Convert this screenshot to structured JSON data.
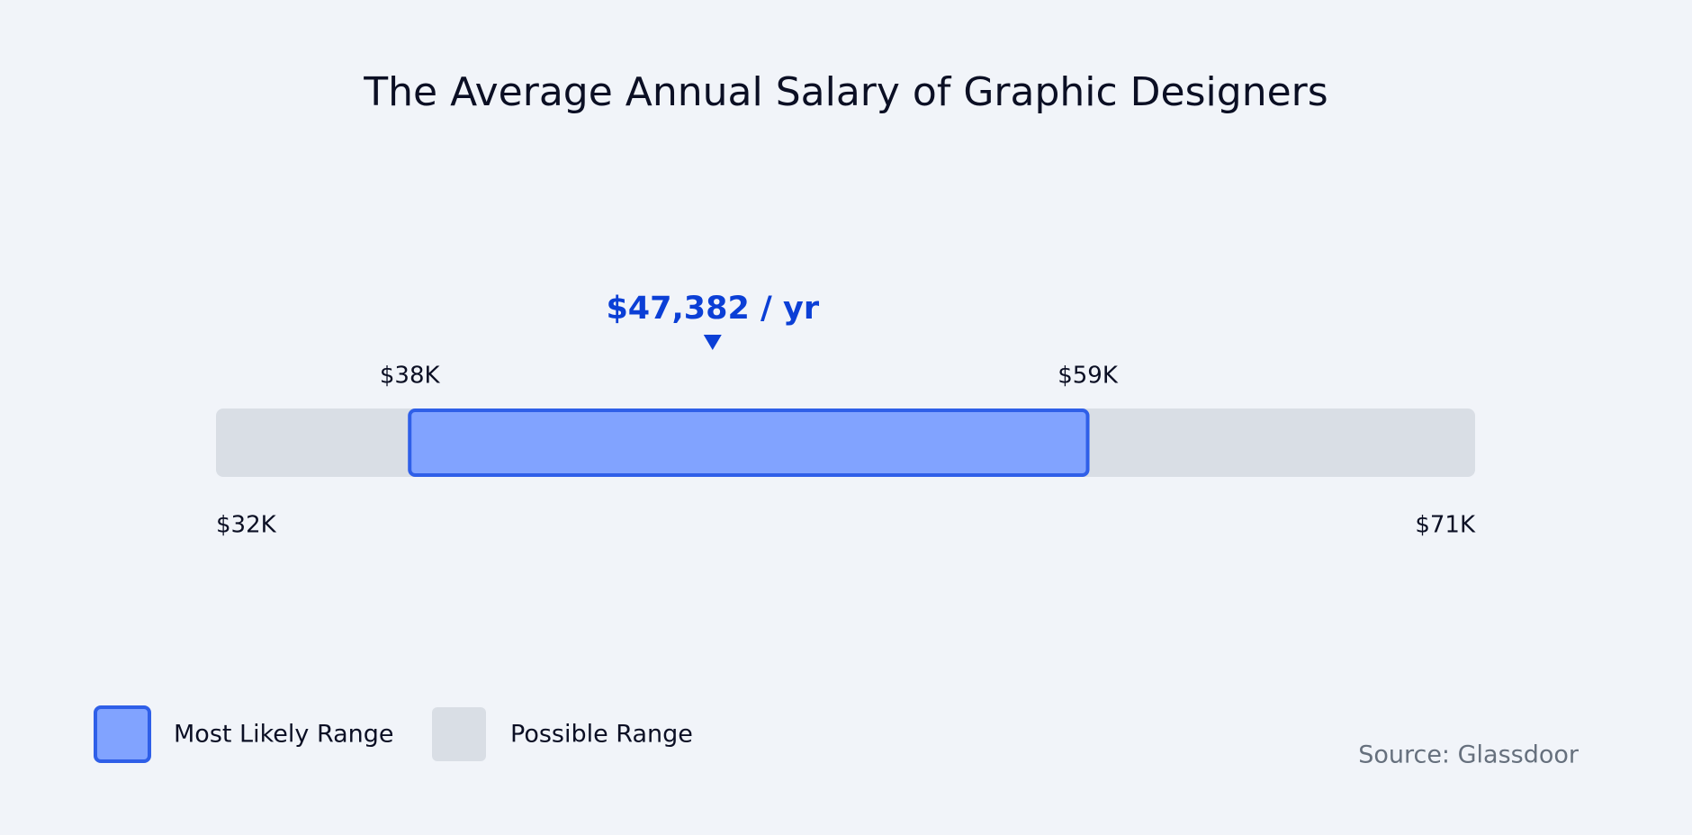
{
  "chart_data": {
    "type": "range",
    "title": "The Average Annual Salary of Graphic Designers",
    "series": [
      {
        "name": "Most Likely Range",
        "color": "#81a3ff",
        "border": "#2f5fe8",
        "values": [
          38000,
          59000
        ],
        "value_labels": [
          "$38K",
          "$59K"
        ]
      },
      {
        "name": "Possible Range",
        "color": "#d9dee5",
        "values": [
          32000,
          71000
        ],
        "value_labels": [
          "$32K",
          "$71K"
        ]
      }
    ],
    "average": {
      "value": 47382,
      "label": "$47,382 / yr",
      "color": "#0b3fd6"
    },
    "source": "Source: Glassdoor"
  }
}
